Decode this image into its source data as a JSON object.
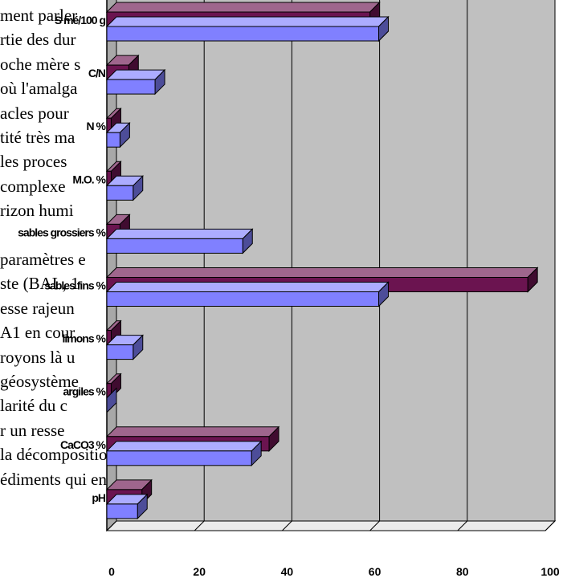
{
  "background_text": [
    "ment parler",
    "rtie des dur",
    "oche mère s",
    "où l'amalga",
    "acles pour",
    "tité très ma",
    "les proces",
    "complexe",
    "rizon humi",
    "",
    "paramètres e",
    "ste (BAL, 1",
    "esse rajeun",
    "A1 en cour",
    "royons là u",
    "géosystème",
    "larité du c",
    "r un resse",
    "la décomposition de la matière organique , ralentissem",
    "édiments qui entraîne la déshydratation très rapide des"
  ],
  "colors": {
    "series_1": "#6b1450",
    "series_2": "#8080ff",
    "plot_area": "#c0c0c0",
    "floor": "#ebebeb",
    "gridline": "#000000"
  },
  "chart_data": {
    "type": "bar",
    "orientation": "horizontal",
    "style": "3d-clustered",
    "categories": [
      "S mé/100 g",
      "C/N",
      "N %",
      "M.O. %",
      "sables grossiers %",
      "sables fins %",
      "limons %",
      "argiles %",
      "CaCO3 %",
      "pH"
    ],
    "series": [
      {
        "values": [
          60,
          5,
          1,
          1,
          3,
          96,
          1,
          1,
          37,
          8
        ]
      },
      {
        "values": [
          62,
          11,
          3,
          6,
          31,
          62,
          6,
          0,
          33,
          7
        ]
      }
    ],
    "xlim": [
      0,
      100
    ],
    "x_ticks": [
      "0",
      "20",
      "40",
      "60",
      "80",
      "100"
    ],
    "grid": true,
    "legend": "none"
  }
}
